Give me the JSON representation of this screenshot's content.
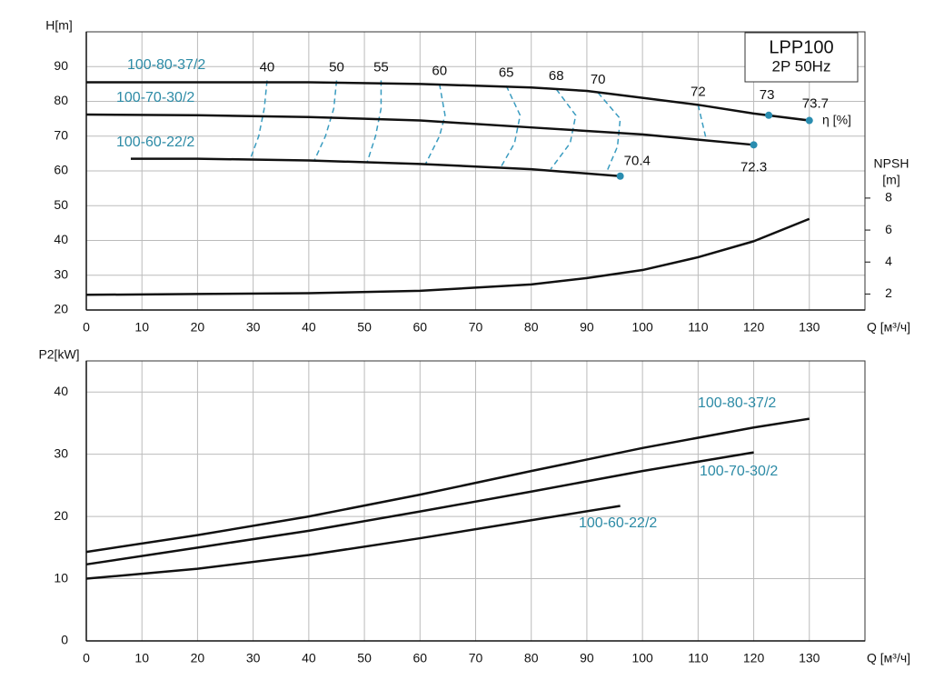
{
  "chart_data": [
    {
      "type": "line",
      "title": "LPP100",
      "subtitle": "2P 50Hz",
      "ylabel": "H[m]",
      "xlabel": "Q [м³/ч]",
      "y2label": "NPSH",
      "y2unit": "[m]",
      "eta_label": "η [%]",
      "xlim": [
        0,
        140
      ],
      "xticks": [
        0,
        10,
        20,
        30,
        40,
        50,
        60,
        70,
        80,
        90,
        100,
        110,
        120,
        130
      ],
      "ylim": [
        20,
        100
      ],
      "yticks": [
        20,
        30,
        40,
        50,
        60,
        70,
        80,
        90
      ],
      "y2lim": [
        1,
        18.4
      ],
      "y2ticks": [
        2,
        4,
        6,
        8
      ],
      "grid": true,
      "series": [
        {
          "name": "100-80-37/2",
          "color": "#111111",
          "x": [
            0,
            20,
            40,
            60,
            80,
            90,
            100,
            110,
            120,
            130
          ],
          "values": [
            85.5,
            85.5,
            85.5,
            85,
            84,
            83,
            81,
            79,
            76.5,
            74.5
          ]
        },
        {
          "name": "100-70-30/2",
          "color": "#111111",
          "x": [
            0,
            20,
            40,
            60,
            80,
            100,
            110,
            120
          ],
          "values": [
            76.2,
            76,
            75.5,
            74.5,
            72.5,
            70.5,
            69,
            67.5
          ]
        },
        {
          "name": "100-60-22/2",
          "color": "#111111",
          "x": [
            8,
            20,
            40,
            60,
            80,
            96
          ],
          "values": [
            63.5,
            63.5,
            63,
            62,
            60.5,
            58.5
          ]
        },
        {
          "axis": "y2",
          "color": "#111111",
          "x": [
            0,
            20,
            40,
            60,
            80,
            90,
            100,
            110,
            120,
            130
          ],
          "values": [
            1.95,
            2,
            2.05,
            2.2,
            2.6,
            3,
            3.5,
            4.3,
            5.3,
            6.7
          ]
        }
      ],
      "efficiency": [
        {
          "eta": 40,
          "x": [
            32.5,
            32,
            31,
            29.5
          ],
          "values": [
            86,
            78,
            70,
            63.5
          ]
        },
        {
          "eta": 50,
          "x": [
            45,
            44.5,
            43,
            41
          ],
          "values": [
            86,
            78,
            70,
            63
          ]
        },
        {
          "eta": 55,
          "x": [
            53,
            53,
            52,
            50.5
          ],
          "values": [
            86,
            78,
            70,
            62.5
          ]
        },
        {
          "eta": 60,
          "x": [
            63.5,
            64.5,
            63.5,
            61
          ],
          "values": [
            85,
            76,
            70,
            62
          ]
        },
        {
          "eta": 65,
          "x": [
            75.5,
            78,
            77,
            74.5
          ],
          "values": [
            84.5,
            76,
            68,
            61
          ]
        },
        {
          "eta": 68,
          "x": [
            84.5,
            88,
            87,
            83.5
          ],
          "values": [
            83.5,
            76,
            68,
            60.5
          ]
        },
        {
          "eta": 70,
          "x": [
            92,
            96,
            95.5,
            93.5
          ],
          "values": [
            82.5,
            75,
            67,
            59.5
          ]
        },
        {
          "eta": 72,
          "x": [
            110,
            111.5
          ],
          "values": [
            79,
            68.8
          ]
        }
      ],
      "markers": [
        {
          "x": 122.7,
          "value": 76,
          "eta": 73
        },
        {
          "x": 130,
          "value": 74.5,
          "eta": 73.7
        },
        {
          "x": 120,
          "value": 67.5,
          "eta": 72.3
        },
        {
          "x": 96,
          "value": 58.5,
          "eta": 70.4
        }
      ],
      "marker_color": "#2a8db0",
      "label_color": "#2d8ba6",
      "dash_color": "#3a9cc0"
    },
    {
      "type": "line",
      "ylabel": "P2[kW]",
      "xlabel": "Q [м³/ч]",
      "xlim": [
        0,
        140
      ],
      "xticks": [
        0,
        10,
        20,
        30,
        40,
        50,
        60,
        70,
        80,
        90,
        100,
        110,
        120,
        130
      ],
      "ylim": [
        0,
        45
      ],
      "yticks": [
        0,
        10,
        20,
        30,
        40
      ],
      "grid": true,
      "label_color": "#2d8ba6",
      "series": [
        {
          "name": "100-80-37/2",
          "color": "#111111",
          "x": [
            0,
            20,
            40,
            60,
            80,
            100,
            120,
            130
          ],
          "values": [
            14.3,
            17,
            20,
            23.5,
            27.3,
            31,
            34.3,
            35.7
          ]
        },
        {
          "name": "100-70-30/2",
          "color": "#111111",
          "x": [
            0,
            20,
            40,
            60,
            80,
            100,
            120
          ],
          "values": [
            12.3,
            15,
            17.7,
            20.8,
            24,
            27.3,
            30.3
          ]
        },
        {
          "name": "100-60-22/2",
          "color": "#111111",
          "x": [
            0,
            20,
            40,
            60,
            80,
            96
          ],
          "values": [
            10,
            11.6,
            13.8,
            16.5,
            19.4,
            21.7
          ]
        }
      ]
    }
  ]
}
